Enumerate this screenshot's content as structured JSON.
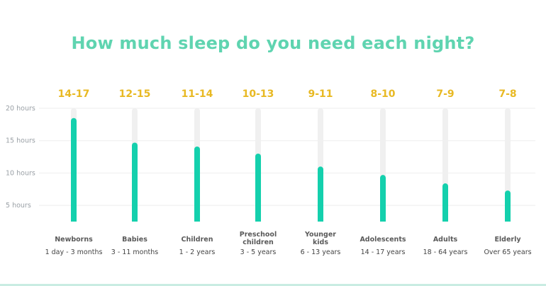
{
  "title": "How much sleep do you need each night?",
  "colors": {
    "title": "#5fd4b0",
    "bar": "#14d0ad",
    "track": "#f0f0f0",
    "range": "#e8b923",
    "grid": "#eeeeee"
  },
  "chart_data": {
    "type": "bar",
    "title": "How much sleep do you need each night?",
    "ylim": [
      2.5,
      20
    ],
    "yticks": [
      {
        "value": 20,
        "label": "20 hours"
      },
      {
        "value": 15,
        "label": "15 hours"
      },
      {
        "value": 10,
        "label": "10 hours"
      },
      {
        "value": 5,
        "label": "5 hours"
      }
    ],
    "grid": true,
    "categories": [
      {
        "name_lines": [
          "Newborns"
        ],
        "age": "1 day - 3 months",
        "range": "14-17",
        "value": 18.5
      },
      {
        "name_lines": [
          "Babies"
        ],
        "age": "3 - 11 months",
        "range": "12-15",
        "value": 14.7
      },
      {
        "name_lines": [
          "Children"
        ],
        "age": "1 - 2 years",
        "range": "11-14",
        "value": 14.1
      },
      {
        "name_lines": [
          "Preschool",
          "children"
        ],
        "age": "3 - 5 years",
        "range": "10-13",
        "value": 13.0
      },
      {
        "name_lines": [
          "Younger",
          "kids"
        ],
        "age": "6 - 13 years",
        "range": "9-11",
        "value": 11.0
      },
      {
        "name_lines": [
          "Adolescents"
        ],
        "age": "14 - 17 years",
        "range": "8-10",
        "value": 9.7
      },
      {
        "name_lines": [
          "Adults"
        ],
        "age": "18 - 64 years",
        "range": "7-9",
        "value": 8.4
      },
      {
        "name_lines": [
          "Elderly"
        ],
        "age": "Over 65 years",
        "range": "7-8",
        "value": 7.3
      }
    ]
  }
}
